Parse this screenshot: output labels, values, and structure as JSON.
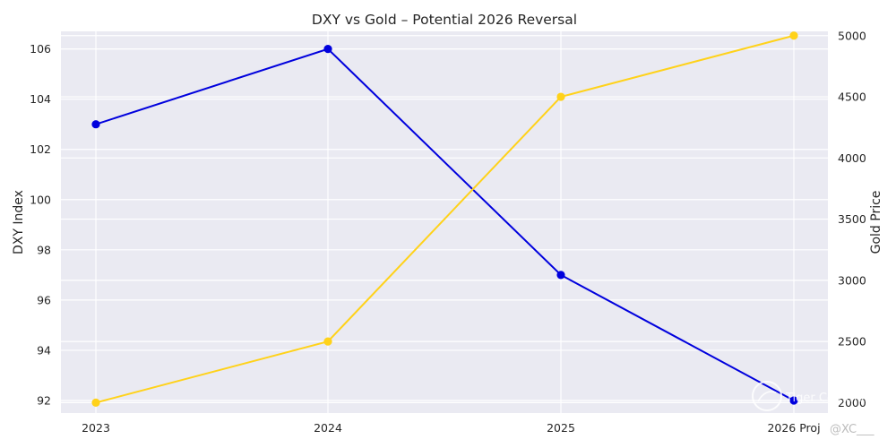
{
  "chart_data": {
    "type": "line",
    "title": "DXY vs Gold – Potential 2026 Reversal",
    "categories": [
      "2023",
      "2024",
      "2025",
      "2026 Proj"
    ],
    "series": [
      {
        "name": "DXY",
        "axis": "left",
        "color": "#0000dd",
        "values": [
          103,
          106,
          97,
          92
        ]
      },
      {
        "name": "Gold",
        "axis": "right",
        "color": "#ffd21a",
        "values": [
          2000,
          2500,
          4500,
          5000
        ]
      }
    ],
    "y_left": {
      "label": "DXY Index",
      "ylim": [
        91.5,
        106.7
      ],
      "ticks": [
        "92",
        "94",
        "96",
        "98",
        "100",
        "102",
        "104",
        "106"
      ]
    },
    "y_right": {
      "label": "Gold Price",
      "ylim": [
        1915,
        5035
      ],
      "ticks": [
        "2000",
        "2500",
        "3000",
        "3500",
        "4000",
        "4500",
        "5000"
      ]
    },
    "grid": true,
    "background": "#eaeaf2"
  },
  "watermark": {
    "brand": "Tiger Community",
    "handle": "@XC___"
  }
}
